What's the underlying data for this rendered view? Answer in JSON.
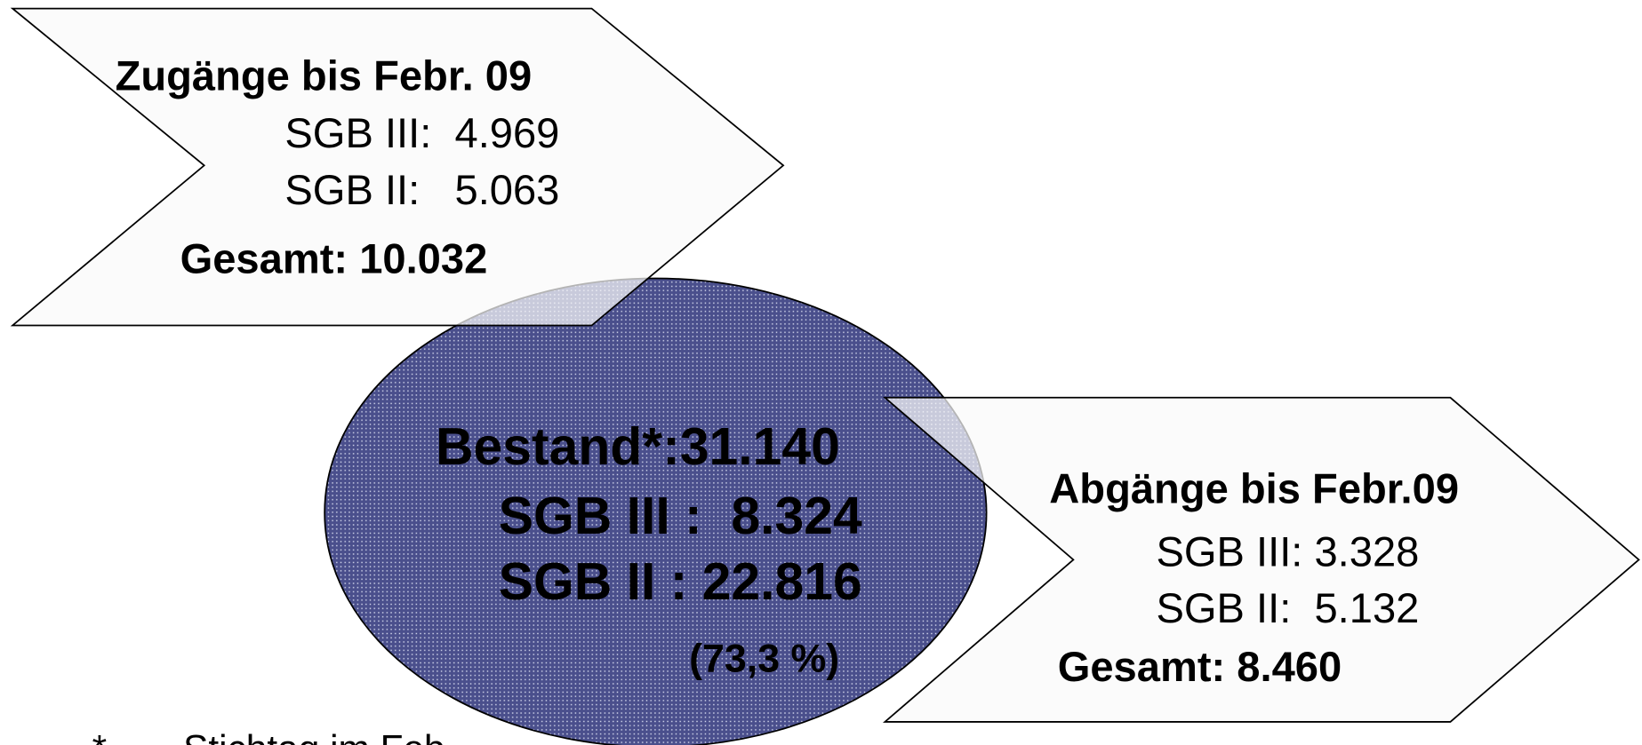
{
  "inflow": {
    "title": "Zugänge bis Febr. 09",
    "lines": [
      "SGB III:  4.969",
      "SGB II:   5.063"
    ],
    "total": "Gesamt: 10.032"
  },
  "stock": {
    "title": "Bestand*:31.140",
    "lines": [
      "SGB III :  8.324",
      "SGB II : 22.816"
    ],
    "share": "(73,3 %)"
  },
  "outflow": {
    "title": "Abgänge bis Febr.09",
    "lines": [
      "SGB III: 3.328",
      "SGB II:  5.132"
    ],
    "total": "Gesamt: 8.460"
  },
  "footnote": {
    "marker": "*",
    "text": "Stichtag im Feb"
  }
}
